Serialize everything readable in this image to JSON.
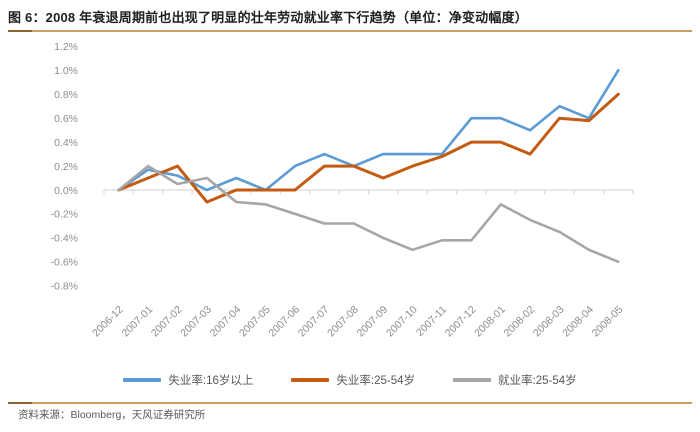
{
  "title": "图 6：2008 年衰退周期前也出现了明显的壮年劳动就业率下行趋势（单位：净变动幅度）",
  "footer": {
    "source_label": "资料来源：Bloomberg，天风证券研究所"
  },
  "colors": {
    "blue": "#5B9BD5",
    "orange": "#C55A11",
    "gray": "#A6A6A6",
    "axis_text": "#8C8C8C",
    "axis_line": "#D9D9D9",
    "title_text": "#1F1F1F",
    "legend_text": "#595959",
    "rule_gold": "#C9A05E",
    "rule_brown": "#8C6230"
  },
  "chart_data": {
    "type": "line",
    "title": "2008 年衰退周期前也出现了明显的壮年劳动就业率下行趋势",
    "unit_note": "净变动幅度",
    "categories": [
      "2006-12",
      "2007-01",
      "2007-02",
      "2007-03",
      "2007-04",
      "2007-05",
      "2007-06",
      "2007-07",
      "2007-08",
      "2007-09",
      "2007-10",
      "2007-11",
      "2007-12",
      "2008-01",
      "2008-02",
      "2008-03",
      "2008-04",
      "2008-05"
    ],
    "series": [
      {
        "name": "失业率:16岁以上",
        "color_key": "blue",
        "stroke_width": 2.6,
        "values": [
          0.0,
          0.17,
          0.12,
          0.0,
          0.1,
          0.0,
          0.2,
          0.3,
          0.2,
          0.3,
          0.3,
          0.3,
          0.6,
          0.6,
          0.5,
          0.7,
          0.6,
          1.0
        ]
      },
      {
        "name": "失业率:25-54岁",
        "color_key": "orange",
        "stroke_width": 3,
        "values": [
          0.0,
          0.1,
          0.2,
          -0.1,
          0.0,
          0.0,
          0.0,
          0.2,
          0.2,
          0.1,
          0.2,
          0.28,
          0.4,
          0.4,
          0.3,
          0.6,
          0.58,
          0.8
        ]
      },
      {
        "name": "就业率:25-54岁",
        "color_key": "gray",
        "stroke_width": 2.6,
        "values": [
          0.0,
          0.2,
          0.05,
          0.1,
          -0.1,
          -0.12,
          -0.2,
          -0.28,
          -0.28,
          -0.4,
          -0.5,
          -0.42,
          -0.42,
          -0.12,
          -0.25,
          -0.35,
          -0.5,
          -0.6
        ]
      }
    ],
    "ylim": [
      -0.8,
      1.2
    ],
    "y_tick_step": 0.2,
    "y_tick_labels": [
      "1.2%",
      "1.0%",
      "0.8%",
      "0.6%",
      "0.4%",
      "0.2%",
      "0.0%",
      "-0.2%",
      "-0.4%",
      "-0.6%",
      "-0.8%"
    ],
    "grid": "zero-line-only",
    "legend_position": "bottom",
    "x_label_rotation": -45
  }
}
